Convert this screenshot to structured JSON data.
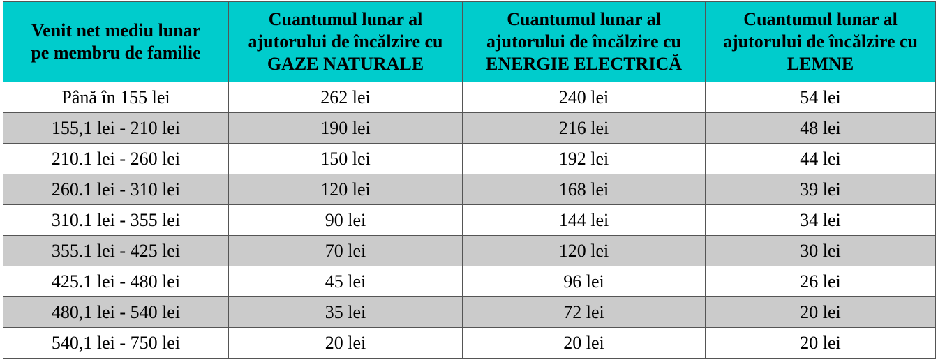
{
  "header": {
    "columns": [
      [
        "Venit net mediu lunar",
        "pe membru de familie"
      ],
      [
        "Cuantumul lunar al",
        "ajutorului de încălzire cu",
        "GAZE NATURALE"
      ],
      [
        "Cuantumul lunar al",
        "ajutorului de încălzire cu",
        "ENERGIE ELECTRICĂ"
      ],
      [
        "Cuantumul lunar al",
        "ajutorului de încălzire cu",
        "LEMNE"
      ]
    ]
  },
  "table": {
    "rows": [
      [
        "Până în 155 lei",
        "262 lei",
        "240 lei",
        "54 lei"
      ],
      [
        "155,1 lei - 210 lei",
        "190 lei",
        "216 lei",
        "48 lei"
      ],
      [
        "210.1 lei - 260 lei",
        "150 lei",
        "192 lei",
        "44 lei"
      ],
      [
        "260.1 lei - 310 lei",
        "120 lei",
        "168 lei",
        "39 lei"
      ],
      [
        "310.1 lei - 355 lei",
        "90 lei",
        "144 lei",
        "34 lei"
      ],
      [
        "355.1 lei - 425 lei",
        "70 lei",
        "120 lei",
        "30 lei"
      ],
      [
        "425.1 lei - 480 lei",
        "45 lei",
        "96 lei",
        "26 lei"
      ],
      [
        "480,1 lei - 540 lei",
        "35 lei",
        "72 lei",
        "20 lei"
      ],
      [
        "540,1 lei - 750 lei",
        "20 lei",
        "20 lei",
        "20 lei"
      ]
    ]
  }
}
